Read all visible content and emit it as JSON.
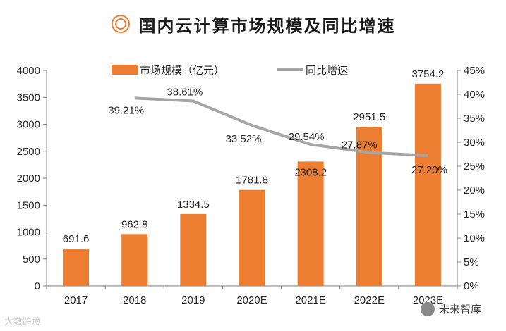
{
  "title": "国内云计算市场规模及同比增速",
  "watermarks": {
    "bottom_left": "大数跨境",
    "bottom_right": "未来智库"
  },
  "colors": {
    "bar": "#ED7D31",
    "line": "#A5A5A5",
    "axis": "#7f7f7f",
    "text": "#262626",
    "title_icon": "#ED7D31"
  },
  "chart_data": {
    "type": "bar",
    "title": "国内云计算市场规模及同比增速",
    "categories": [
      "2017",
      "2018",
      "2019",
      "2020E",
      "2021E",
      "2022E",
      "2023E"
    ],
    "series": [
      {
        "name": "市场规模（亿元）",
        "type": "bar",
        "axis": "left",
        "values": [
          691.6,
          962.8,
          1334.5,
          1781.8,
          2308.2,
          2951.5,
          3754.2
        ],
        "labels": [
          "691.6",
          "962.8",
          "1334.5",
          "1781.8",
          "2308.2",
          "2951.5",
          "3754.2"
        ]
      },
      {
        "name": "同比增速",
        "type": "line",
        "axis": "right",
        "values": [
          null,
          39.21,
          38.61,
          33.52,
          29.54,
          27.87,
          27.2
        ],
        "labels": [
          "",
          "39.21%",
          "38.61%",
          "33.52%",
          "29.54%",
          "27.87%",
          "27.20%"
        ]
      }
    ],
    "y_left": {
      "min": 0,
      "max": 4000,
      "step": 500,
      "ticks": [
        "0",
        "500",
        "1000",
        "1500",
        "2000",
        "2500",
        "3000",
        "3500",
        "4000"
      ]
    },
    "y_right": {
      "min": 0,
      "max": 45,
      "step": 5,
      "ticks": [
        "0%",
        "5%",
        "10%",
        "15%",
        "20%",
        "25%",
        "30%",
        "35%",
        "40%",
        "45%"
      ]
    },
    "legend": {
      "position": "top",
      "items": [
        "市场规模（亿元）",
        "同比增速"
      ]
    },
    "grid": false
  }
}
